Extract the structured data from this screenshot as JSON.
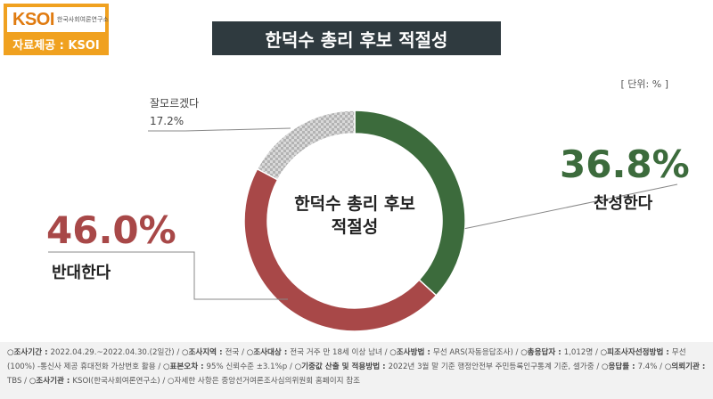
{
  "logo": {
    "mark": "KSOI",
    "subtitle": "한국사회여론연구소",
    "source_label": "자료제공 : KSOI"
  },
  "title": "한덕수 총리 후보 적절성",
  "unit": "[ 단위: % ]",
  "colors": {
    "agree": "#3c6b3c",
    "disagree": "#a84848",
    "unknown": "#c8c8c8",
    "title_bg": "#2f3a3f",
    "logo_bg": "#f0a11f"
  },
  "chart_data": {
    "type": "pie",
    "donut": true,
    "center_label": "한덕수 총리 후보 적절성",
    "slices": [
      {
        "label": "찬성한다",
        "value": 36.8,
        "value_text": "36.8%",
        "color": "#3c6b3c"
      },
      {
        "label": "반대한다",
        "value": 46.0,
        "value_text": "46.0%",
        "color": "#a84848"
      },
      {
        "label": "잘모르겠다",
        "value": 17.2,
        "value_text": "17.2%",
        "color": "#c8c8c8"
      }
    ]
  },
  "center": {
    "line1": "한덕수 총리 후보",
    "line2": "적절성"
  },
  "footer": {
    "items": [
      {
        "key": "조사기간",
        "value": "2022.04.29.~2022.04.30.(2일간)"
      },
      {
        "key": "조사지역",
        "value": "전국"
      },
      {
        "key": "조사대상",
        "value": "전국 거주 만 18세 이상 남녀"
      },
      {
        "key": "조사방법",
        "value": "무선 ARS(자동응답조사)"
      },
      {
        "key": "총응답자",
        "value": "1,012명"
      },
      {
        "key": "피조사자선정방법",
        "value": "무선(100%) -통신사 제공 휴대전화 가상번호 활용"
      },
      {
        "key": "표본오차",
        "value": "95% 신뢰수준 ±3.1%p"
      },
      {
        "key": "기중값 산출 및 적용방법",
        "value": "2022년 3월 말 기준 행정안전부 주민등록인구통계 기준, 셀가중"
      },
      {
        "key": "응답률",
        "value": "7.4%"
      },
      {
        "key": "의뢰기관",
        "value": "TBS"
      },
      {
        "key": "조사기관",
        "value": "KSOI(한국사회여론연구소)"
      }
    ],
    "note": "자세한 사항은 중앙선거여론조사심의위원회 홈페이지 참조"
  }
}
